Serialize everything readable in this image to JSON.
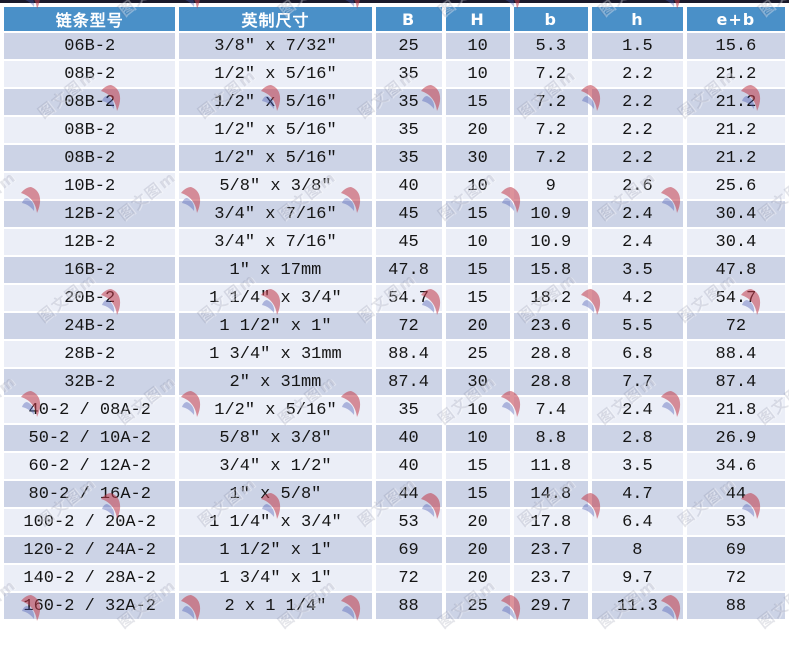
{
  "watermark": {
    "text": "图文图m"
  },
  "colors": {
    "header_bg": "#4a90c8",
    "row_dark": "#ccd3e6",
    "row_light": "#ebeef7",
    "top_line": "#1a1a2b",
    "swirl_red": "#c23b4b",
    "swirl_blue": "#4456b0"
  },
  "table": {
    "columns": [
      {
        "key": "model",
        "label": "链条型号"
      },
      {
        "key": "imperial",
        "label": "英制尺寸"
      },
      {
        "key": "B",
        "label": "B"
      },
      {
        "key": "H",
        "label": "H"
      },
      {
        "key": "b",
        "label": "b"
      },
      {
        "key": "h",
        "label": "h"
      },
      {
        "key": "eb",
        "label": "e+b"
      }
    ],
    "rows": [
      [
        "06B-2",
        "3/8″ x 7/32″",
        "25",
        "10",
        "5.3",
        "1.5",
        "15.6"
      ],
      [
        "08B-2",
        "1/2″ x 5/16″",
        "35",
        "10",
        "7.2",
        "2.2",
        "21.2"
      ],
      [
        "08B-2",
        "1/2″ x 5/16″",
        "35",
        "15",
        "7.2",
        "2.2",
        "21.2"
      ],
      [
        "08B-2",
        "1/2″ x 5/16″",
        "35",
        "20",
        "7.2",
        "2.2",
        "21.2"
      ],
      [
        "08B-2",
        "1/2″ x 5/16″",
        "35",
        "30",
        "7.2",
        "2.2",
        "21.2"
      ],
      [
        "10B-2",
        "5/8″ x 3/8″",
        "40",
        "10",
        "9",
        "2.6",
        "25.6"
      ],
      [
        "12B-2",
        "3/4″ x 7/16″",
        "45",
        "15",
        "10.9",
        "2.4",
        "30.4"
      ],
      [
        "12B-2",
        "3/4″ x 7/16″",
        "45",
        "10",
        "10.9",
        "2.4",
        "30.4"
      ],
      [
        "16B-2",
        "1″ x 17mm",
        "47.8",
        "15",
        "15.8",
        "3.5",
        "47.8"
      ],
      [
        "20B-2",
        "1 1/4″ x 3/4″",
        "54.7",
        "15",
        "18.2",
        "4.2",
        "54.7"
      ],
      [
        "24B-2",
        "1 1/2″ x 1″",
        "72",
        "20",
        "23.6",
        "5.5",
        "72"
      ],
      [
        "28B-2",
        "1 3/4″ x 31mm",
        "88.4",
        "25",
        "28.8",
        "6.8",
        "88.4"
      ],
      [
        "32B-2",
        "2″ x 31mm",
        "87.4",
        "30",
        "28.8",
        "7.7",
        "87.4"
      ],
      [
        "40-2 / 08A-2",
        "1/2″ x 5/16″",
        "35",
        "10",
        "7.4",
        "2.4",
        "21.8"
      ],
      [
        "50-2 / 10A-2",
        "5/8″ x 3/8″",
        "40",
        "10",
        "8.8",
        "2.8",
        "26.9"
      ],
      [
        "60-2 / 12A-2",
        "3/4″ x 1/2″",
        "40",
        "15",
        "11.8",
        "3.5",
        "34.6"
      ],
      [
        "80-2 / 16A-2",
        "1″ x 5/8″",
        "44",
        "15",
        "14.8",
        "4.7",
        "44"
      ],
      [
        "100-2 / 20A-2",
        "1 1/4″ x 3/4″",
        "53",
        "20",
        "17.8",
        "6.4",
        "53"
      ],
      [
        "120-2 / 24A-2",
        "1 1/2″ x 1″",
        "69",
        "20",
        "23.7",
        "8",
        "69"
      ],
      [
        "140-2 / 28A-2",
        "1 3/4″ x 1″",
        "72",
        "20",
        "23.7",
        "9.7",
        "72"
      ],
      [
        "160-2 / 32A-2",
        "2 x 1 1/4″",
        "88",
        "25",
        "29.7",
        "11.3",
        "88"
      ]
    ]
  }
}
